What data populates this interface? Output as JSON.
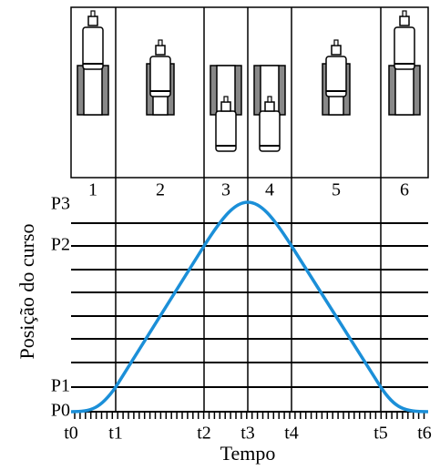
{
  "phases": [
    "1",
    "2",
    "3",
    "4",
    "5",
    "6"
  ],
  "positions": [
    "P0",
    "P1",
    "P2",
    "P3"
  ],
  "times": [
    "t0",
    "t1",
    "t2",
    "t3",
    "t4",
    "t5",
    "t6"
  ],
  "x_label": "Tempo",
  "y_label": "Posição do curso"
}
